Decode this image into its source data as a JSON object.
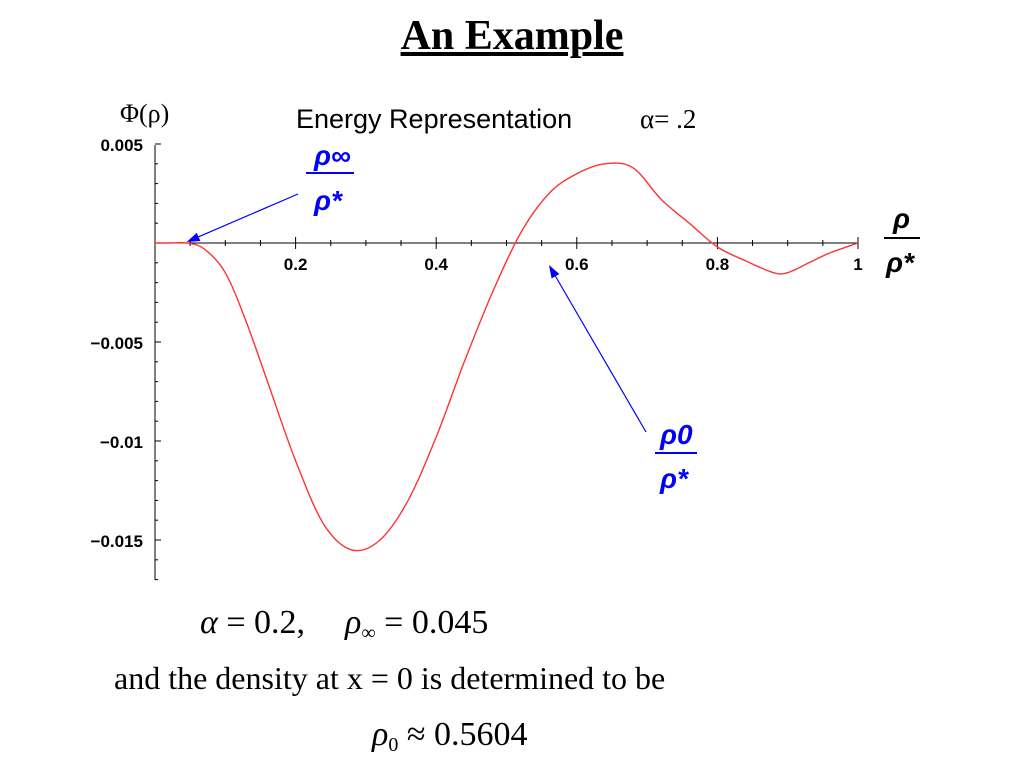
{
  "slide": {
    "title": "An Example"
  },
  "chart_data": {
    "type": "line",
    "title": "Energy Representation",
    "title_param": "α= .2",
    "ylabel": "Φ(ρ)",
    "xlabel_num": "ρ",
    "xlabel_den": "ρ*",
    "xlim": [
      0,
      1
    ],
    "ylim": [
      -0.017,
      0.005
    ],
    "x_ticks": [
      0.2,
      0.4,
      0.6,
      0.8,
      1
    ],
    "x_tick_labels": [
      "0.2",
      "0.4",
      "0.6",
      "0.8",
      "1"
    ],
    "y_ticks": [
      0.005,
      -0.005,
      -0.01,
      -0.015
    ],
    "y_tick_labels": [
      "0.005",
      "−0.005",
      "−0.01",
      "−0.015"
    ],
    "grid": false,
    "series": [
      {
        "color": "#ff3333",
        "x": [
          0,
          0.02,
          0.045,
          0.07,
          0.1,
          0.13,
          0.16,
          0.2,
          0.24,
          0.28,
          0.32,
          0.36,
          0.4,
          0.44,
          0.48,
          0.52,
          0.5604,
          0.6,
          0.64,
          0.68,
          0.72,
          0.76,
          0.8,
          0.84,
          0.88,
          0.9,
          0.93,
          0.96,
          1.0
        ],
        "values": [
          0,
          0,
          0,
          -0.0003,
          -0.0015,
          -0.004,
          -0.007,
          -0.011,
          -0.0142,
          -0.0155,
          -0.015,
          -0.013,
          -0.0098,
          -0.006,
          -0.0025,
          0.0005,
          0.0025,
          0.0035,
          0.004,
          0.0038,
          0.0022,
          0.001,
          -0.0002,
          -0.0009,
          -0.0015,
          -0.0015,
          -0.001,
          -0.0005,
          0.0
        ]
      }
    ],
    "annotations": [
      {
        "num": "ρ∞",
        "den": "ρ*",
        "points_to_x": 0.045,
        "color": "#0000ff"
      },
      {
        "num": "ρ0",
        "den": "ρ*",
        "points_to_x": 0.5604,
        "color": "#0000ff"
      }
    ]
  },
  "formulas": {
    "alpha_sym": "α",
    "eq": " = ",
    "alpha_val": "0.2,",
    "rho_sym": "ρ",
    "inf_sub": "∞",
    "rho_inf_val": "0.045",
    "density_text": "and the density at x = 0 is determined to be",
    "zero_sub": "0",
    "approx": " ≈ ",
    "rho0_val": "0.5604"
  }
}
